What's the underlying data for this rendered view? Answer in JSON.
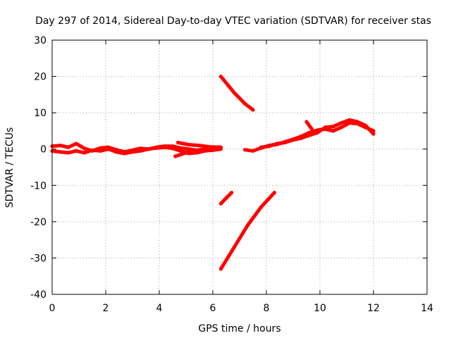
{
  "chart_data": {
    "type": "scatter",
    "title": "Day 297 of 2014, Sidereal Day-to-day VTEC variation (SDTVAR) for receiver stas",
    "xlabel": "GPS time / hours",
    "ylabel": "SDTVAR / TECUs",
    "xlim": [
      0,
      14
    ],
    "ylim": [
      -40,
      30
    ],
    "x_ticks": [
      "0",
      "2",
      "4",
      "6",
      "8",
      "10",
      "12",
      "14"
    ],
    "y_ticks": [
      "-40",
      "-30",
      "-20",
      "-10",
      "0",
      "10",
      "20",
      "30"
    ],
    "grid": true,
    "legend": "none",
    "color": "#ff0000",
    "series": [
      {
        "x": [
          0.0,
          0.3,
          0.6,
          0.9,
          1.2,
          1.5,
          1.8,
          2.1,
          2.4,
          2.7,
          3.0,
          3.3,
          3.6,
          3.9,
          4.2,
          4.5,
          4.8,
          5.1,
          5.4,
          5.7,
          6.0,
          6.3
        ],
        "y": [
          0.8,
          1.0,
          0.5,
          1.5,
          0.2,
          -0.5,
          0.3,
          0.5,
          -0.2,
          -0.8,
          -0.3,
          0.2,
          0.0,
          0.5,
          0.8,
          0.8,
          0.3,
          0.0,
          -0.3,
          0.0,
          0.2,
          0.3
        ]
      },
      {
        "x": [
          0.0,
          0.3,
          0.6,
          0.9,
          1.2,
          1.5,
          1.8,
          2.1,
          2.4,
          2.7,
          3.0,
          3.3,
          3.6,
          3.9,
          4.2,
          4.5,
          4.8,
          5.1,
          5.4,
          5.7,
          6.0,
          6.3
        ],
        "y": [
          -0.5,
          -0.8,
          -1.0,
          -0.5,
          -1.0,
          -0.3,
          -0.5,
          0.0,
          -0.8,
          -1.2,
          -0.8,
          -0.5,
          0.0,
          0.3,
          0.5,
          0.2,
          -0.5,
          -1.2,
          -1.0,
          -0.5,
          -0.3,
          0.0
        ]
      },
      {
        "x": [
          4.6,
          5.0,
          5.4,
          5.8,
          6.2
        ],
        "y": [
          -2.0,
          -1.0,
          -0.5,
          0.0,
          0.3
        ]
      },
      {
        "x": [
          4.7,
          5.1,
          5.5,
          5.9,
          6.3
        ],
        "y": [
          1.8,
          1.2,
          1.0,
          0.6,
          0.5
        ]
      },
      {
        "x": [
          6.3,
          6.8,
          7.2,
          7.5
        ],
        "y": [
          20.0,
          15.5,
          12.5,
          10.8
        ]
      },
      {
        "x": [
          6.3,
          6.5,
          6.7
        ],
        "y": [
          -15.0,
          -13.5,
          -12.0
        ]
      },
      {
        "x": [
          6.3,
          6.8,
          7.3,
          7.8,
          8.3
        ],
        "y": [
          -33.0,
          -27.0,
          -21.0,
          -16.0,
          -12.0
        ]
      },
      {
        "x": [
          7.2,
          7.5,
          7.8,
          8.1,
          8.4,
          8.7,
          9.0,
          9.3,
          9.6,
          9.9,
          10.2,
          10.5,
          10.8,
          11.1,
          11.4,
          11.7,
          12.0
        ],
        "y": [
          -0.2,
          -0.5,
          0.3,
          1.0,
          1.3,
          2.0,
          2.7,
          3.5,
          4.5,
          5.2,
          5.5,
          5.0,
          6.0,
          7.2,
          7.0,
          6.0,
          5.0
        ]
      },
      {
        "x": [
          7.8,
          8.1,
          8.4,
          8.7,
          9.0,
          9.3,
          9.6,
          9.9,
          10.2,
          10.5,
          10.8,
          11.1,
          11.4,
          11.7,
          12.0
        ],
        "y": [
          0.5,
          0.8,
          1.5,
          1.8,
          2.5,
          3.0,
          3.8,
          4.5,
          6.0,
          6.2,
          7.2,
          8.0,
          7.5,
          6.5,
          4.2
        ]
      },
      {
        "x": [
          9.5,
          9.7
        ],
        "y": [
          7.5,
          5.5
        ]
      }
    ]
  }
}
